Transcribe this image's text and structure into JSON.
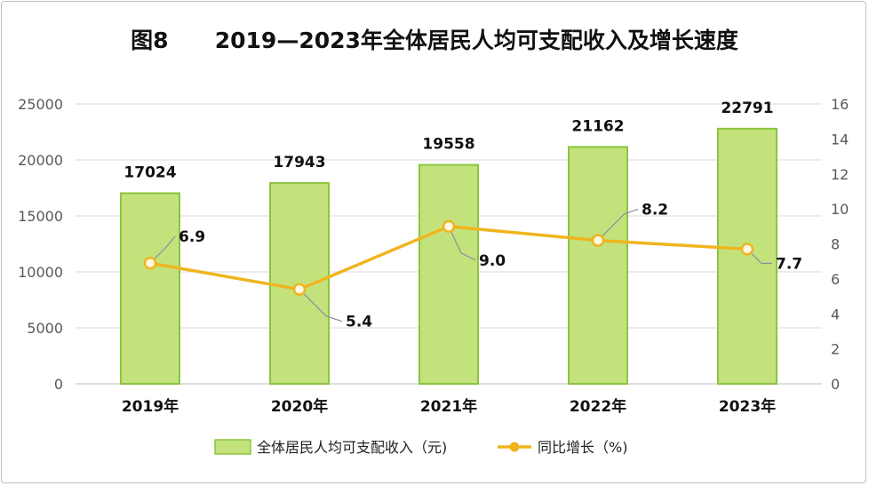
{
  "chart_data": {
    "type": "bar+line",
    "title_prefix": "图8",
    "title": "2019—2023年全体居民人均可支配收入及增长速度",
    "categories": [
      "2019年",
      "2020年",
      "2021年",
      "2022年",
      "2023年"
    ],
    "series": [
      {
        "name": "全体居民人均可支配收入（元)",
        "type": "bar",
        "axis": "left",
        "values": [
          17024,
          17943,
          19558,
          21162,
          22791
        ],
        "color": "#c3e27c",
        "border_color": "#8bc53f"
      },
      {
        "name": "同比增长（%)",
        "type": "line",
        "axis": "right",
        "values": [
          6.9,
          5.4,
          9.0,
          8.2,
          7.7
        ],
        "labels": [
          "6.9",
          "5.4",
          "9.0",
          "8.2",
          "7.7"
        ],
        "color": "#f0b51e"
      }
    ],
    "y_left": {
      "min": 0,
      "max": 25000,
      "ticks": [
        "0",
        "5000",
        "10000",
        "15000",
        "20000",
        "25000"
      ]
    },
    "y_right": {
      "min": 0,
      "max": 16,
      "ticks": [
        "0",
        "2",
        "4",
        "6",
        "8",
        "10",
        "12",
        "14",
        "16"
      ]
    },
    "grid": true,
    "legend": "bottom"
  }
}
